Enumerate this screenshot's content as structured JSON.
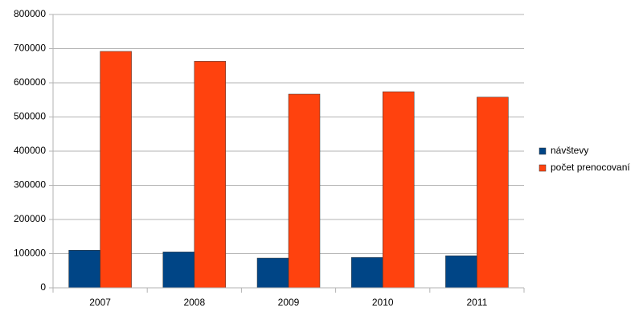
{
  "chart_data": {
    "type": "bar",
    "categories": [
      "2007",
      "2008",
      "2009",
      "2010",
      "2011"
    ],
    "series": [
      {
        "name": "návštevy",
        "color": "#004586",
        "values": [
          110000,
          105000,
          87000,
          89000,
          94000
        ]
      },
      {
        "name": "počet prenocovaní",
        "color": "#ff420e",
        "values": [
          692000,
          663000,
          567000,
          574000,
          558000
        ]
      }
    ],
    "ylim": [
      0,
      800000
    ],
    "yticks": [
      0,
      100000,
      200000,
      300000,
      400000,
      500000,
      600000,
      700000,
      800000
    ],
    "grid": true,
    "legend": "right"
  }
}
